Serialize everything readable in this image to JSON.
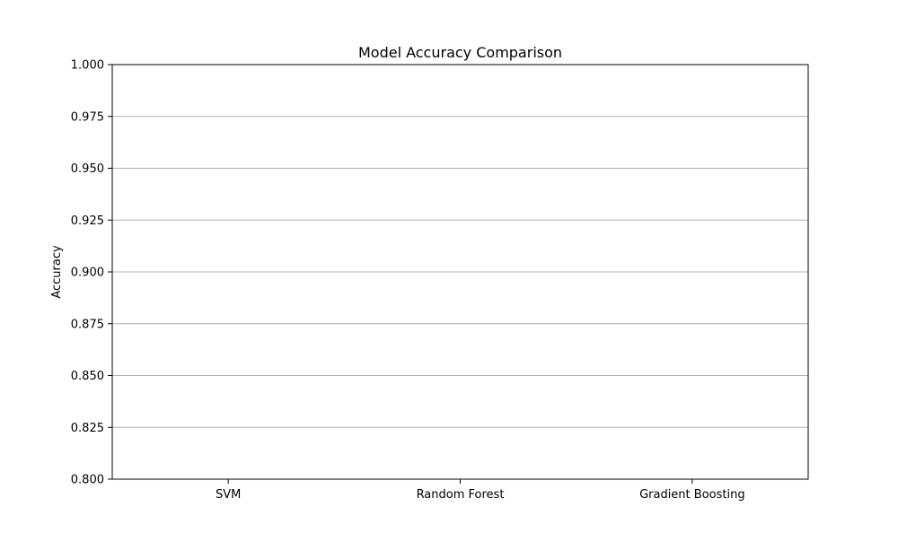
{
  "chart_data": {
    "type": "bar",
    "title": "Model Accuracy Comparison",
    "xlabel": "",
    "ylabel": "Accuracy",
    "categories": [
      "SVM",
      "Random Forest",
      "Gradient Boosting"
    ],
    "series": [
      {
        "values": [
          null,
          null,
          null
        ]
      }
    ],
    "ylim": [
      0.8,
      1.0
    ],
    "yticks": [
      "0.800",
      "0.825",
      "0.850",
      "0.875",
      "0.900",
      "0.925",
      "0.950",
      "0.975",
      "1.000"
    ],
    "grid": "y-axis horizontal lines",
    "legend": "none"
  },
  "colors": {
    "grid": "#b0b0b0",
    "axis": "#000000",
    "background": "#ffffff"
  }
}
